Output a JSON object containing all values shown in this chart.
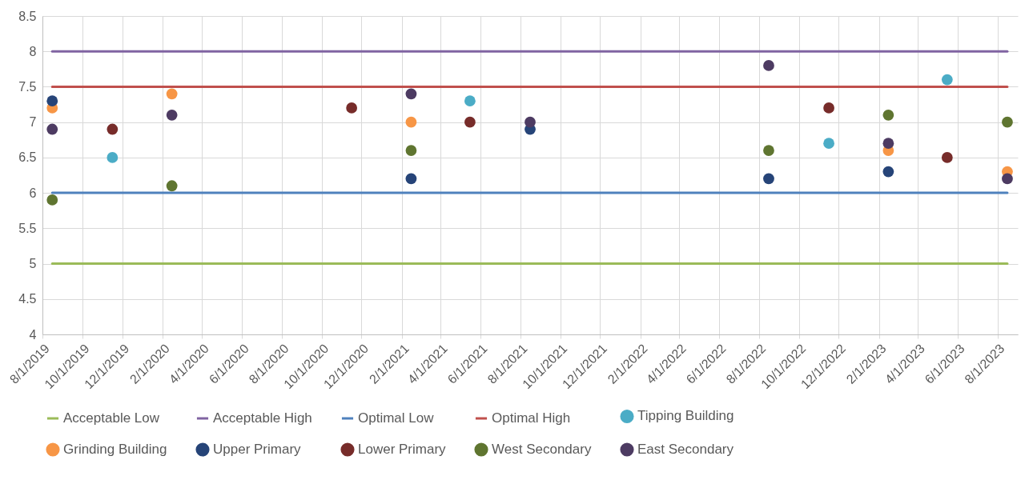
{
  "chart_data": {
    "type": "scatter",
    "x": [
      "2019-08-16",
      "2019-11-16",
      "2020-02-15",
      "2020-11-16",
      "2021-02-15",
      "2021-05-16",
      "2021-08-16",
      "2022-08-16",
      "2022-11-16",
      "2023-02-15",
      "2023-05-16",
      "2023-08-16"
    ],
    "series": [
      {
        "name": "Acceptable Low",
        "type": "line",
        "marker": "none",
        "color": "#9bbb59",
        "x": [
          "2019-08-16",
          "2023-08-16"
        ],
        "values": [
          5,
          5
        ]
      },
      {
        "name": "Acceptable High",
        "type": "line",
        "marker": "none",
        "color": "#8064a2",
        "x": [
          "2019-08-16",
          "2023-08-16"
        ],
        "values": [
          8,
          8
        ]
      },
      {
        "name": "Optimal Low",
        "type": "line",
        "marker": "none",
        "color": "#4f81bd",
        "x": [
          "2019-08-16",
          "2023-08-16"
        ],
        "values": [
          6,
          6
        ]
      },
      {
        "name": "Optimal High",
        "type": "line",
        "marker": "none",
        "color": "#c0504d",
        "x": [
          "2019-08-16",
          "2023-08-16"
        ],
        "values": [
          7.5,
          7.5
        ]
      },
      {
        "name": "Tipping Building",
        "color": "#4bacc6",
        "values": [
          null,
          6.5,
          null,
          null,
          null,
          7.3,
          null,
          null,
          6.7,
          null,
          7.6,
          null
        ]
      },
      {
        "name": "Grinding Building",
        "color": "#f79646",
        "values": [
          7.2,
          null,
          7.4,
          null,
          7.0,
          null,
          null,
          null,
          null,
          6.6,
          null,
          6.3
        ]
      },
      {
        "name": "Upper Primary",
        "color": "#264478",
        "values": [
          7.3,
          null,
          null,
          null,
          6.2,
          null,
          6.9,
          6.2,
          null,
          6.3,
          null,
          null
        ]
      },
      {
        "name": "Lower Primary",
        "color": "#772c2a",
        "values": [
          null,
          6.9,
          null,
          7.2,
          null,
          7.0,
          null,
          null,
          7.2,
          null,
          6.5,
          null
        ]
      },
      {
        "name": "West Secondary",
        "color": "#5f7530",
        "values": [
          5.9,
          null,
          6.1,
          null,
          6.6,
          null,
          null,
          6.6,
          null,
          7.1,
          null,
          7.0
        ]
      },
      {
        "name": "East Secondary",
        "color": "#4d3b62",
        "values": [
          6.9,
          null,
          7.1,
          null,
          7.4,
          null,
          7.0,
          7.8,
          null,
          6.7,
          null,
          6.2
        ]
      }
    ],
    "xlim": [
      "2019-08-01",
      "2023-09-01"
    ],
    "xticks": [
      {
        "value": "2019-08-01",
        "label": "8/1/2019"
      },
      {
        "value": "2019-10-01",
        "label": "10/1/2019"
      },
      {
        "value": "2019-12-01",
        "label": "12/1/2019"
      },
      {
        "value": "2020-02-01",
        "label": "2/1/2020"
      },
      {
        "value": "2020-04-01",
        "label": "4/1/2020"
      },
      {
        "value": "2020-06-01",
        "label": "6/1/2020"
      },
      {
        "value": "2020-08-01",
        "label": "8/1/2020"
      },
      {
        "value": "2020-10-01",
        "label": "10/1/2020"
      },
      {
        "value": "2020-12-01",
        "label": "12/1/2020"
      },
      {
        "value": "2021-02-01",
        "label": "2/1/2021"
      },
      {
        "value": "2021-04-01",
        "label": "4/1/2021"
      },
      {
        "value": "2021-06-01",
        "label": "6/1/2021"
      },
      {
        "value": "2021-08-01",
        "label": "8/1/2021"
      },
      {
        "value": "2021-10-01",
        "label": "10/1/2021"
      },
      {
        "value": "2021-12-01",
        "label": "12/1/2021"
      },
      {
        "value": "2022-02-01",
        "label": "2/1/2022"
      },
      {
        "value": "2022-04-01",
        "label": "4/1/2022"
      },
      {
        "value": "2022-06-01",
        "label": "6/1/2022"
      },
      {
        "value": "2022-08-01",
        "label": "8/1/2022"
      },
      {
        "value": "2022-10-01",
        "label": "10/1/2022"
      },
      {
        "value": "2022-12-01",
        "label": "12/1/2022"
      },
      {
        "value": "2023-02-01",
        "label": "2/1/2023"
      },
      {
        "value": "2023-04-01",
        "label": "4/1/2023"
      },
      {
        "value": "2023-06-01",
        "label": "6/1/2023"
      },
      {
        "value": "2023-08-01",
        "label": "8/1/2023"
      }
    ],
    "ylim": [
      4,
      8.5
    ],
    "yticks": [
      4,
      4.5,
      5,
      5.5,
      6,
      6.5,
      7,
      7.5,
      8,
      8.5
    ],
    "grid": true,
    "legend": "bottom",
    "marker": "circle",
    "line_style": "solid"
  }
}
